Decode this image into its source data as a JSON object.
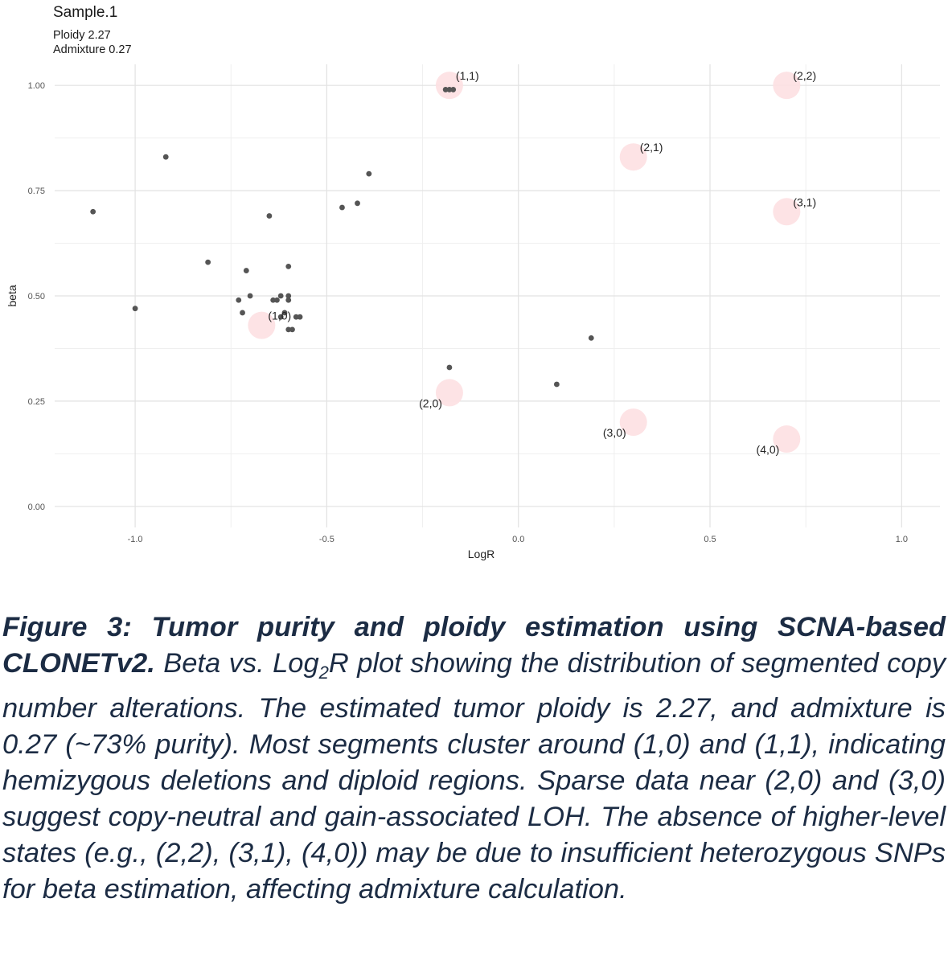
{
  "chart_data": {
    "type": "scatter",
    "title": "Sample.1",
    "subtitle_lines": [
      "Ploidy 2.27",
      "Admixture 0.27"
    ],
    "xlabel": "LogR",
    "ylabel": "beta",
    "xlim": [
      -1.21,
      1.1
    ],
    "ylim": [
      -0.05,
      1.05
    ],
    "x_ticks": [
      -1.0,
      -0.5,
      0.0,
      0.5,
      1.0
    ],
    "x_tick_labels": [
      "-1.0",
      "-0.5",
      "0.0",
      "0.5",
      "1.0"
    ],
    "y_ticks": [
      0.0,
      0.25,
      0.5,
      0.75,
      1.0
    ],
    "y_tick_labels": [
      "0.00",
      "0.25",
      "0.50",
      "0.75",
      "1.00"
    ],
    "grid": true,
    "point_color": "#555555",
    "state_color": "#fde0e2",
    "points": [
      {
        "x": -1.11,
        "y": 0.7
      },
      {
        "x": -0.92,
        "y": 0.83
      },
      {
        "x": -1.0,
        "y": 0.47
      },
      {
        "x": -0.81,
        "y": 0.58
      },
      {
        "x": -0.71,
        "y": 0.56
      },
      {
        "x": -0.65,
        "y": 0.69
      },
      {
        "x": -0.73,
        "y": 0.49
      },
      {
        "x": -0.7,
        "y": 0.5
      },
      {
        "x": -0.72,
        "y": 0.46
      },
      {
        "x": -0.64,
        "y": 0.49
      },
      {
        "x": -0.63,
        "y": 0.49
      },
      {
        "x": -0.62,
        "y": 0.5
      },
      {
        "x": -0.6,
        "y": 0.5
      },
      {
        "x": -0.6,
        "y": 0.49
      },
      {
        "x": -0.6,
        "y": 0.57
      },
      {
        "x": -0.61,
        "y": 0.46
      },
      {
        "x": -0.58,
        "y": 0.45
      },
      {
        "x": -0.57,
        "y": 0.45
      },
      {
        "x": -0.6,
        "y": 0.42
      },
      {
        "x": -0.59,
        "y": 0.42
      },
      {
        "x": -0.62,
        "y": 0.45
      },
      {
        "x": -0.46,
        "y": 0.71
      },
      {
        "x": -0.42,
        "y": 0.72
      },
      {
        "x": -0.39,
        "y": 0.79
      },
      {
        "x": -0.19,
        "y": 0.99
      },
      {
        "x": -0.18,
        "y": 0.99
      },
      {
        "x": -0.17,
        "y": 0.99
      },
      {
        "x": -0.18,
        "y": 0.33
      },
      {
        "x": 0.1,
        "y": 0.29
      },
      {
        "x": 0.19,
        "y": 0.4
      }
    ],
    "states": [
      {
        "label": "(1,1)",
        "x": -0.18,
        "y": 1.0,
        "label_pos": "top-right"
      },
      {
        "label": "(2,2)",
        "x": 0.7,
        "y": 1.0,
        "label_pos": "top-right"
      },
      {
        "label": "(2,1)",
        "x": 0.3,
        "y": 0.83,
        "label_pos": "top-right"
      },
      {
        "label": "(3,1)",
        "x": 0.7,
        "y": 0.7,
        "label_pos": "top-right"
      },
      {
        "label": "(1,0)",
        "x": -0.67,
        "y": 0.43,
        "label_pos": "top-right"
      },
      {
        "label": "(2,0)",
        "x": -0.18,
        "y": 0.27,
        "label_pos": "bottom-left"
      },
      {
        "label": "(3,0)",
        "x": 0.3,
        "y": 0.2,
        "label_pos": "bottom-left"
      },
      {
        "label": "(4,0)",
        "x": 0.7,
        "y": 0.16,
        "label_pos": "bottom-left"
      }
    ]
  },
  "caption": {
    "figure_label": "Figure 3: Tumor purity and ploidy estimation using SCNA-based CLONETv2.",
    "text_before_sub": " Beta vs. Log",
    "subscript": "2",
    "text_after_sub": "R plot showing the distribution of segmented copy number alterations. The estimated tumor ploidy is 2.27, and admixture is 0.27 (~73% purity). Most segments cluster around (1,0) and (1,1), indicating hemizygous deletions and diploid regions. Sparse data near (2,0) and (3,0) suggest copy-neutral and gain-associated LOH. The absence of higher-level states (e.g., (2,2), (3,1), (4,0)) may be due to insufficient heterozygous SNPs for beta estimation, affecting admixture calculation."
  }
}
